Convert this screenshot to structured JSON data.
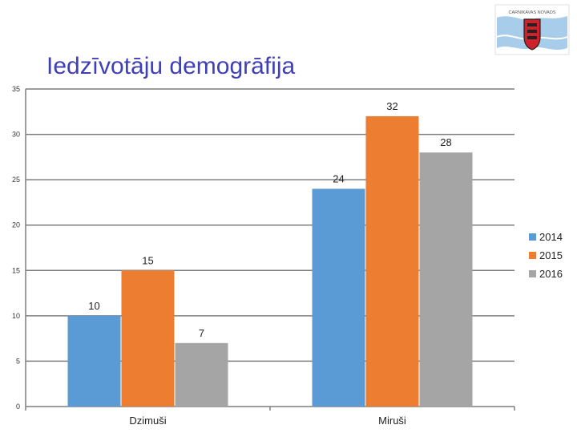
{
  "slide": {
    "title": "Iedzīvotāju demogrāfija",
    "logo": {
      "icon": "coat-of-arms-logo",
      "caption": "CARNIKAVAS NOVADS",
      "colors": {
        "wave": "#a7cdea",
        "shield": "#d0202a",
        "border": "#222222"
      }
    }
  },
  "chart_data": {
    "type": "bar",
    "categories": [
      "Dzimuši",
      "Miruši"
    ],
    "series": [
      {
        "name": "2014",
        "values": [
          10,
          24
        ],
        "color": "#5b9bd5"
      },
      {
        "name": "2015",
        "values": [
          15,
          32
        ],
        "color": "#ed7d31"
      },
      {
        "name": "2016",
        "values": [
          7,
          28
        ],
        "color": "#a5a5a5"
      }
    ],
    "title": "",
    "xlabel": "",
    "ylabel": "",
    "ylim": [
      0,
      35
    ],
    "yticks": [
      0,
      5,
      10,
      15,
      20,
      25,
      30,
      35
    ],
    "grid": true,
    "legend": "right",
    "data_labels": true
  }
}
